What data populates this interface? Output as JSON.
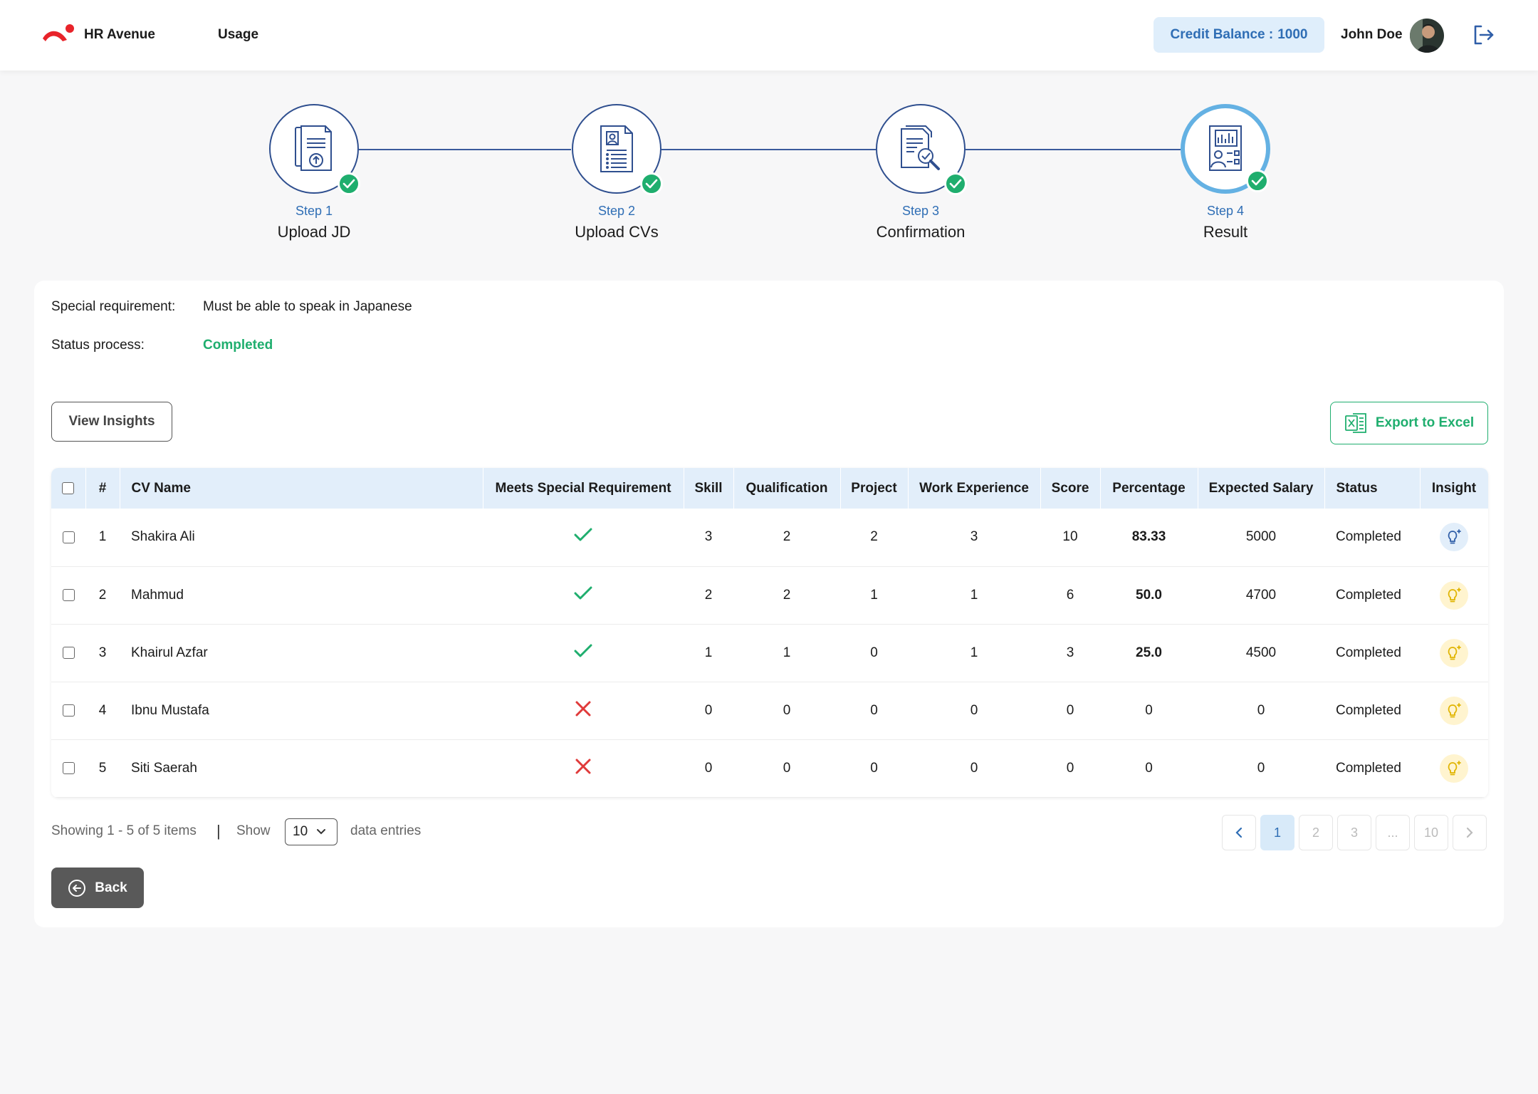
{
  "header": {
    "brand": "HR Avenue",
    "nav_usage": "Usage",
    "credit_label": "Credit Balance :",
    "credit_value": "1000",
    "username": "John Doe",
    "colors": {
      "brand_red": "#e8232a",
      "accent_blue": "#2f6eb5",
      "credit_bg": "#dfeefb"
    }
  },
  "stepper": {
    "steps": [
      {
        "number": "Step 1",
        "label": "Upload JD",
        "icon": "upload-document-icon",
        "completed": true
      },
      {
        "number": "Step 2",
        "label": "Upload CVs",
        "icon": "cv-document-icon",
        "completed": true
      },
      {
        "number": "Step 3",
        "label": "Confirmation",
        "icon": "document-search-icon",
        "completed": true
      },
      {
        "number": "Step 4",
        "label": "Result",
        "icon": "report-chart-icon",
        "completed": true,
        "active": true
      }
    ]
  },
  "info": {
    "special_requirement_label": "Special requirement:",
    "special_requirement_value": "Must be able to speak in Japanese",
    "status_label": "Status process:",
    "status_value": "Completed"
  },
  "actions": {
    "view_insights": "View Insights",
    "export_excel": "Export to Excel",
    "back": "Back"
  },
  "table": {
    "headers": {
      "num": "#",
      "cv_name": "CV Name",
      "meets": "Meets Special Requirement",
      "skill": "Skill",
      "qualification": "Qualification",
      "project": "Project",
      "work_experience": "Work Experience",
      "score": "Score",
      "percentage": "Percentage",
      "expected_salary": "Expected Salary",
      "status": "Status",
      "insight": "Insight"
    },
    "rows": [
      {
        "num": "1",
        "name": "Shakira Ali",
        "meets": true,
        "skill": "3",
        "qualification": "2",
        "project": "2",
        "work": "3",
        "score": "10",
        "percentage": "83.33",
        "salary": "5000",
        "status": "Completed",
        "insight_style": "blue"
      },
      {
        "num": "2",
        "name": "Mahmud",
        "meets": true,
        "skill": "2",
        "qualification": "2",
        "project": "1",
        "work": "1",
        "score": "6",
        "percentage": "50.0",
        "salary": "4700",
        "status": "Completed",
        "insight_style": "yellow"
      },
      {
        "num": "3",
        "name": "Khairul Azfar",
        "meets": true,
        "skill": "1",
        "qualification": "1",
        "project": "0",
        "work": "1",
        "score": "3",
        "percentage": "25.0",
        "salary": "4500",
        "status": "Completed",
        "insight_style": "yellow"
      },
      {
        "num": "4",
        "name": "Ibnu Mustafa",
        "meets": false,
        "skill": "0",
        "qualification": "0",
        "project": "0",
        "work": "0",
        "score": "0",
        "percentage": "0",
        "salary": "0",
        "status": "Completed",
        "insight_style": "yellow"
      },
      {
        "num": "5",
        "name": "Siti Saerah",
        "meets": false,
        "skill": "0",
        "qualification": "0",
        "project": "0",
        "work": "0",
        "score": "0",
        "percentage": "0",
        "salary": "0",
        "status": "Completed",
        "insight_style": "yellow"
      }
    ]
  },
  "footer": {
    "showing": "Showing 1 - 5 of 5 items",
    "separator": "|",
    "show_label": "Show",
    "entries_value": "10",
    "entries_label": "data entries",
    "pages": [
      "1",
      "2",
      "3",
      "...",
      "10"
    ],
    "active_page": "1"
  }
}
